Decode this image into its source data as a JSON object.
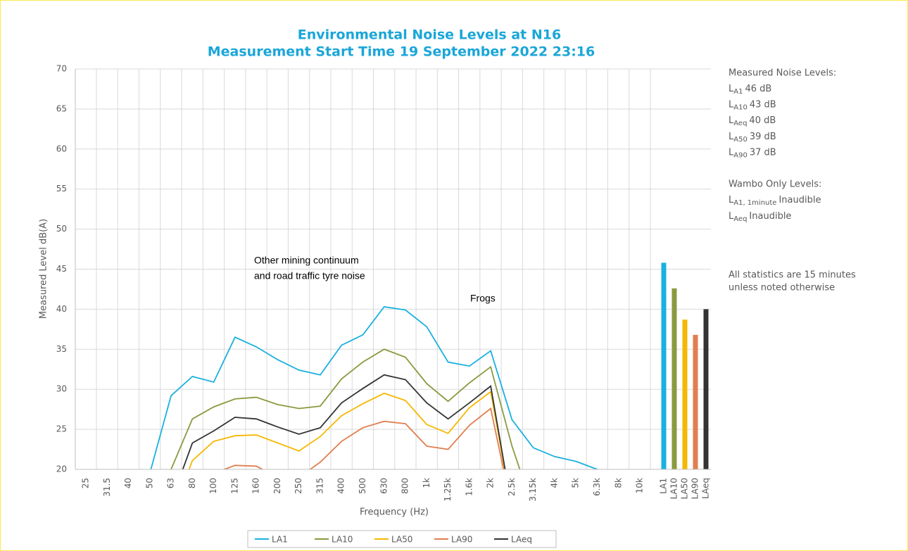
{
  "chart_data": {
    "type": "line",
    "title": [
      "Environmental Noise Levels at N16",
      "Measurement Start Time 19 September 2022 23:16"
    ],
    "y_label": "Measured Level dB(A)",
    "x_label": "Frequency (Hz)",
    "ylim": [
      20,
      70
    ],
    "yticks": [
      20,
      25,
      30,
      35,
      40,
      45,
      50,
      55,
      60,
      65,
      70
    ],
    "grid": true,
    "categories": [
      "25",
      "31.5",
      "40",
      "50",
      "63",
      "80",
      "100",
      "125",
      "160",
      "200",
      "250",
      "315",
      "400",
      "500",
      "630",
      "800",
      "1k",
      "1.25k",
      "1.6k",
      "2k",
      "2.5k",
      "3.15k",
      "4k",
      "5k",
      "6.3k",
      "8k",
      "10k"
    ],
    "series": [
      {
        "name": "LA1",
        "color": "#1ab0e0",
        "values": [
          null,
          null,
          null,
          19.5,
          29.2,
          31.6,
          30.9,
          36.5,
          35.3,
          33.7,
          32.4,
          31.8,
          35.5,
          36.8,
          40.3,
          39.9,
          37.8,
          33.4,
          32.9,
          34.8,
          26.2,
          22.7,
          21.6,
          21.0,
          20.0,
          19.0,
          null
        ]
      },
      {
        "name": "LA10",
        "color": "#8a9a3f",
        "values": [
          null,
          null,
          null,
          14,
          20.0,
          26.3,
          27.8,
          28.8,
          29.0,
          28.1,
          27.6,
          27.9,
          31.3,
          33.4,
          35.0,
          34.0,
          30.7,
          28.5,
          30.8,
          32.8,
          22.9,
          15,
          null,
          null,
          null,
          null,
          null
        ]
      },
      {
        "name": "LA50",
        "color": "#f5b800",
        "values": [
          null,
          null,
          null,
          null,
          14,
          21.1,
          23.5,
          24.2,
          24.3,
          23.3,
          22.3,
          24.1,
          26.7,
          28.2,
          29.5,
          28.6,
          25.6,
          24.5,
          27.7,
          29.7,
          15,
          null,
          null,
          null,
          null,
          null,
          null
        ]
      },
      {
        "name": "LA90",
        "color": "#e07f50",
        "values": [
          null,
          null,
          null,
          null,
          null,
          15,
          19.5,
          20.5,
          20.4,
          19.0,
          19.0,
          20.9,
          23.5,
          25.2,
          26.0,
          25.7,
          22.9,
          22.5,
          25.5,
          27.6,
          15,
          null,
          null,
          null,
          null,
          null,
          null
        ]
      },
      {
        "name": "LAeq",
        "color": "#333333",
        "values": [
          null,
          null,
          null,
          null,
          16,
          23.3,
          24.8,
          26.5,
          26.3,
          25.3,
          24.4,
          25.2,
          28.3,
          30.1,
          31.8,
          31.2,
          28.3,
          26.3,
          28.3,
          30.4,
          15,
          null,
          null,
          null,
          null,
          null,
          null
        ]
      }
    ],
    "bars": {
      "categories": [
        "LA1",
        "LA10",
        "LA50",
        "LA90",
        "LAeq"
      ],
      "values": [
        45.8,
        42.6,
        38.7,
        36.8,
        40.0
      ],
      "colors": [
        "#1ab0e0",
        "#8a9a3f",
        "#f5b800",
        "#e07f50",
        "#333333"
      ]
    },
    "annotations": [
      {
        "lines": [
          "Other mining continuum",
          "and road traffic tyre noise"
        ]
      },
      {
        "lines": [
          "Frogs"
        ]
      }
    ],
    "notes": {
      "measured_heading": "Measured Noise Levels:",
      "measured": [
        {
          "symbol": "L",
          "sub": "A1",
          "text": "46 dB"
        },
        {
          "symbol": "L",
          "sub": "A10",
          "text": "43 dB"
        },
        {
          "symbol": "L",
          "sub": "Aeq",
          "text": "40 dB"
        },
        {
          "symbol": "L",
          "sub": "A50",
          "text": "39 dB"
        },
        {
          "symbol": "L",
          "sub": "A90",
          "text": "37 dB"
        }
      ],
      "wambo_heading": "Wambo Only Levels:",
      "wambo": [
        {
          "symbol": "L",
          "sub": "A1, 1minute",
          "text": "Inaudible"
        },
        {
          "symbol": "L",
          "sub": "Aeq",
          "text": "Inaudible"
        }
      ],
      "footer": [
        "All statistics are 15 minutes",
        "unless noted otherwise"
      ]
    }
  }
}
